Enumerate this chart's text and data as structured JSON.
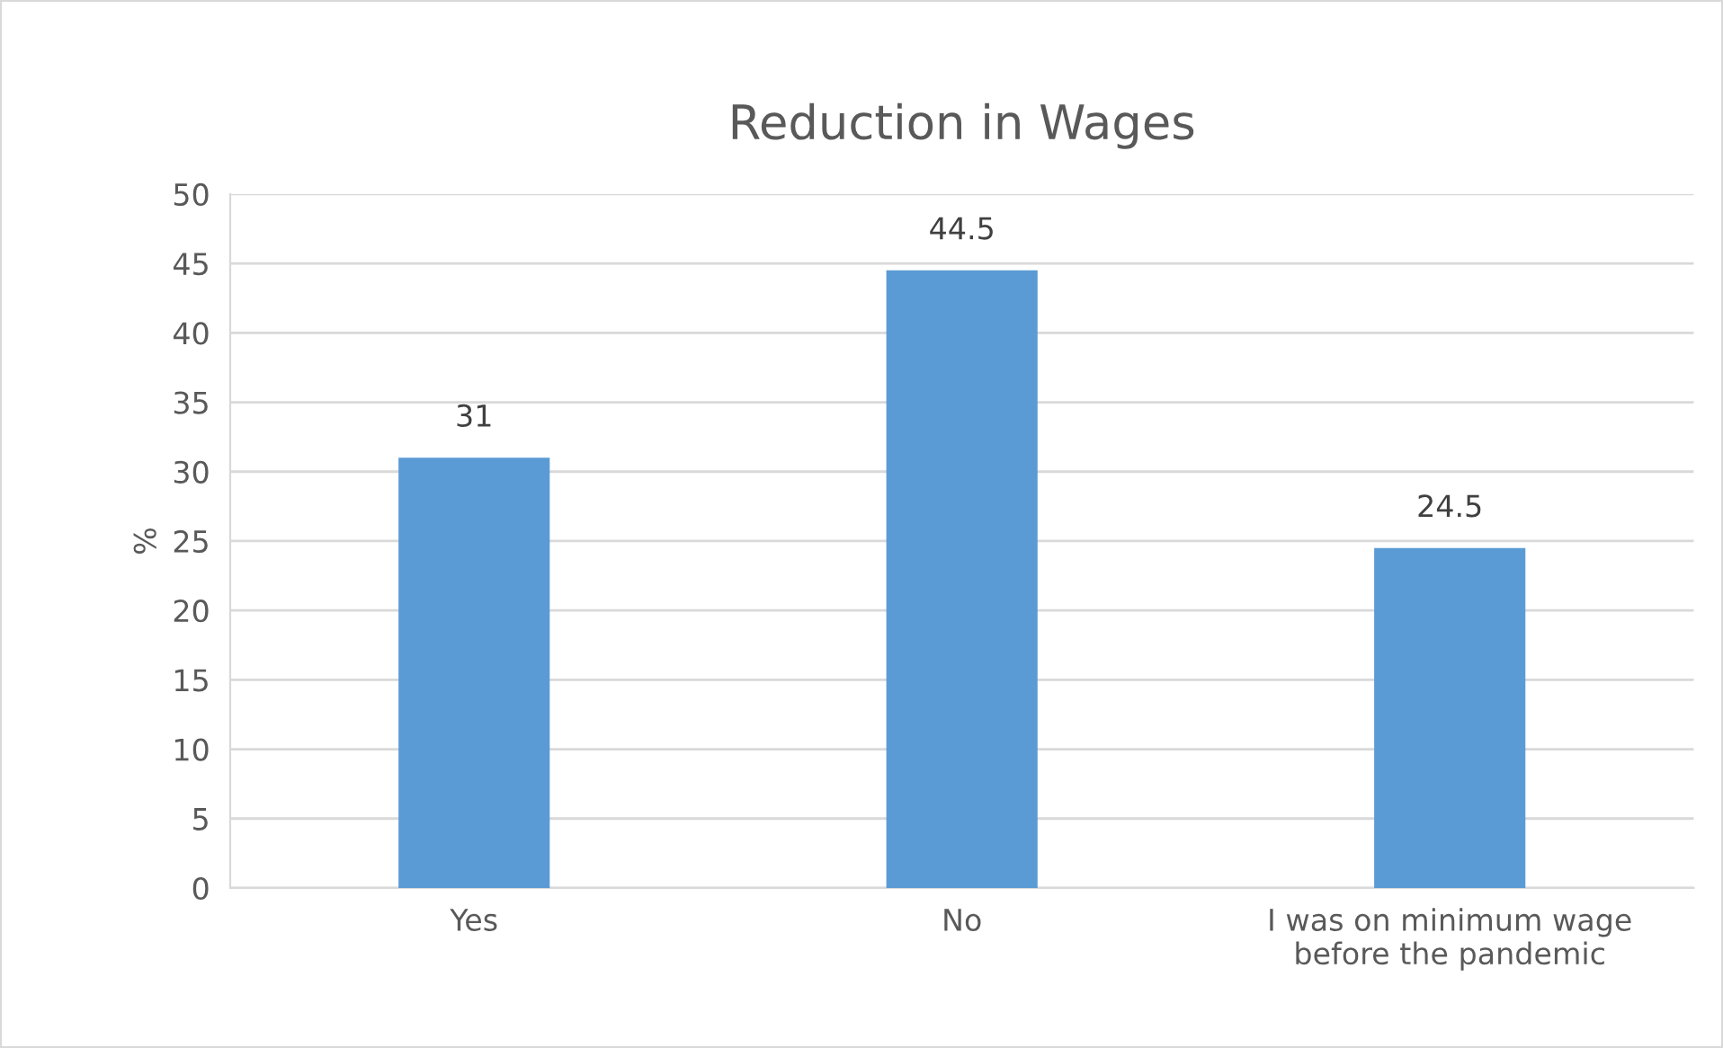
{
  "chart_data": {
    "type": "bar",
    "title": "Reduction in Wages",
    "ylabel": "%",
    "categories": [
      "Yes",
      "No",
      "I was on minimum wage\nbefore the pandemic"
    ],
    "values": [
      31,
      44.5,
      24.5
    ],
    "color": "#5b9bd5",
    "ylim": [
      0,
      50
    ],
    "yticks": [
      0,
      5,
      10,
      15,
      20,
      25,
      30,
      35,
      40,
      45,
      50
    ],
    "grid": "y",
    "data_labels": true,
    "legend": false
  }
}
